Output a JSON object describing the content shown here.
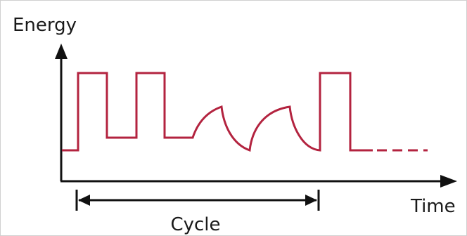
{
  "diagram": {
    "y_axis_label": "Energy",
    "x_axis_label": "Time",
    "span_label": "Cycle",
    "colors": {
      "signal": "#b3233f",
      "axis": "#111111",
      "text": "#1a1a1a"
    }
  }
}
